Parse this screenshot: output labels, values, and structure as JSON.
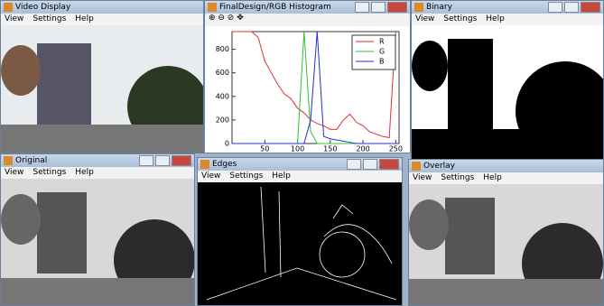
{
  "windows": [
    {
      "title": "Video Display",
      "menu": [
        "View",
        "Settings",
        "Help"
      ]
    },
    {
      "title": "Binary",
      "menu": [
        "View",
        "Settings",
        "Help"
      ]
    },
    {
      "title": "Original",
      "menu": [
        "View",
        "Settings",
        "Help"
      ]
    },
    {
      "title": "Edges",
      "menu": [
        "View",
        "Settings",
        "Help"
      ]
    },
    {
      "title": "Overlay",
      "menu": [
        "View",
        "Settings",
        "Help"
      ]
    }
  ],
  "histogram_window": {
    "title": "FinalDesign/RGB Histogram"
  },
  "chart_data": {
    "type": "line",
    "x": [
      0,
      10,
      20,
      30,
      40,
      50,
      60,
      70,
      80,
      90,
      100,
      110,
      120,
      130,
      140,
      150,
      160,
      170,
      180,
      190,
      200,
      210,
      220,
      230,
      240,
      250
    ],
    "series": [
      {
        "name": "R",
        "color": "#e03030",
        "values": [
          950,
          950,
          950,
          950,
          900,
          700,
          600,
          500,
          420,
          380,
          300,
          260,
          200,
          170,
          150,
          120,
          120,
          200,
          250,
          180,
          150,
          100,
          80,
          60,
          50,
          950
        ]
      },
      {
        "name": "G",
        "color": "#30c030",
        "values": [
          0,
          0,
          0,
          0,
          0,
          0,
          0,
          0,
          0,
          0,
          0,
          950,
          100,
          0,
          0,
          0,
          0,
          0,
          0,
          0,
          0,
          0,
          0,
          0,
          0,
          0
        ]
      },
      {
        "name": "B",
        "color": "#2030d0",
        "values": [
          0,
          0,
          0,
          0,
          0,
          0,
          0,
          0,
          0,
          0,
          0,
          0,
          200,
          950,
          60,
          40,
          30,
          20,
          10,
          0,
          0,
          0,
          0,
          0,
          0,
          0
        ]
      }
    ],
    "xlim": [
      0,
      255
    ],
    "ylim": [
      0,
      950
    ],
    "xticks": [
      50,
      100,
      150,
      200,
      250
    ],
    "yticks": [
      0,
      200,
      400,
      600,
      800
    ],
    "legend": "top-right"
  }
}
